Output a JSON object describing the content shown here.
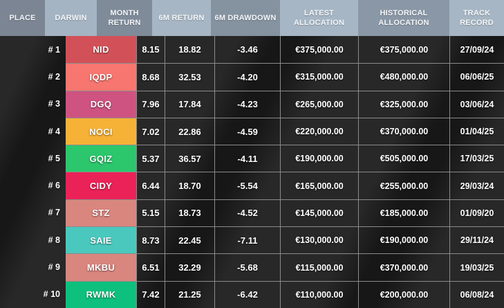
{
  "header": {
    "columns": [
      {
        "id": "place",
        "label": "PLACE",
        "bg": "#7b8593"
      },
      {
        "id": "darwin",
        "label": "DARWIN",
        "bg": "#a4b4c3"
      },
      {
        "id": "month_return",
        "label": "MONTH RETURN",
        "bg": "#7f8b99"
      },
      {
        "id": "six_m_return",
        "label": "6M RETURN",
        "bg": "#a6b6c4"
      },
      {
        "id": "six_m_drawdown",
        "label": "6M DRAWDOWN",
        "bg": "#8592a0"
      },
      {
        "id": "latest_allocation",
        "label": "LATEST ALLOCATION",
        "bg": "#a6b6c4"
      },
      {
        "id": "historical_allocation",
        "label": "HISTORICAL ALLOCATION",
        "bg": "#8a97a6"
      },
      {
        "id": "track_record",
        "label": "TRACK RECORD",
        "bg": "#a6b6c4"
      }
    ]
  },
  "rows": [
    {
      "place": "# 1",
      "darwin": "NID",
      "darwin_color": "#d25158",
      "month_return": "8.15",
      "six_m_return": "18.82",
      "six_m_drawdown": "-3.46",
      "latest_allocation": "€375,000.00",
      "historical_allocation": "€375,000.00",
      "track_record": "27/09/24"
    },
    {
      "place": "# 2",
      "darwin": "IQDP",
      "darwin_color": "#f87670",
      "month_return": "8.68",
      "six_m_return": "32.53",
      "six_m_drawdown": "-4.20",
      "latest_allocation": "€315,000.00",
      "historical_allocation": "€480,000.00",
      "track_record": "06/06/25"
    },
    {
      "place": "# 3",
      "darwin": "DGQ",
      "darwin_color": "#ce5380",
      "month_return": "7.96",
      "six_m_return": "17.84",
      "six_m_drawdown": "-4.23",
      "latest_allocation": "€265,000.00",
      "historical_allocation": "€325,000.00",
      "track_record": "03/06/24"
    },
    {
      "place": "# 4",
      "darwin": "NOCI",
      "darwin_color": "#f6b237",
      "month_return": "7.02",
      "six_m_return": "22.86",
      "six_m_drawdown": "-4.59",
      "latest_allocation": "€220,000.00",
      "historical_allocation": "€370,000.00",
      "track_record": "01/04/25"
    },
    {
      "place": "# 5",
      "darwin": "GQIZ",
      "darwin_color": "#2cc76d",
      "month_return": "5.37",
      "six_m_return": "36.57",
      "six_m_drawdown": "-4.11",
      "latest_allocation": "€190,000.00",
      "historical_allocation": "€505,000.00",
      "track_record": "17/03/25"
    },
    {
      "place": "# 6",
      "darwin": "CIDY",
      "darwin_color": "#eb2257",
      "month_return": "6.44",
      "six_m_return": "18.70",
      "six_m_drawdown": "-5.54",
      "latest_allocation": "€165,000.00",
      "historical_allocation": "€255,000.00",
      "track_record": "29/03/24"
    },
    {
      "place": "# 7",
      "darwin": "STZ",
      "darwin_color": "#d9867f",
      "month_return": "5.15",
      "six_m_return": "18.73",
      "six_m_drawdown": "-4.52",
      "latest_allocation": "€145,000.00",
      "historical_allocation": "€185,000.00",
      "track_record": "01/09/20"
    },
    {
      "place": "# 8",
      "darwin": "SAIE",
      "darwin_color": "#4bc8be",
      "month_return": "8.73",
      "six_m_return": "22.45",
      "six_m_drawdown": "-7.11",
      "latest_allocation": "€130,000.00",
      "historical_allocation": "€190,000.00",
      "track_record": "29/11/24"
    },
    {
      "place": "# 9",
      "darwin": "MKBU",
      "darwin_color": "#d9867f",
      "month_return": "6.51",
      "six_m_return": "32.29",
      "six_m_drawdown": "-5.68",
      "latest_allocation": "€115,000.00",
      "historical_allocation": "€370,000.00",
      "track_record": "19/03/25"
    },
    {
      "place": "# 10",
      "darwin": "RWMK",
      "darwin_color": "#0ec07d",
      "month_return": "7.42",
      "six_m_return": "21.25",
      "six_m_drawdown": "-6.42",
      "latest_allocation": "€110,000.00",
      "historical_allocation": "€200,000.00",
      "track_record": "06/08/24"
    }
  ],
  "theme": {
    "body_background": "#282828",
    "grid_border": "#8b8b8b",
    "header_text": "#f4f6f8",
    "body_text": "#ffffff"
  }
}
